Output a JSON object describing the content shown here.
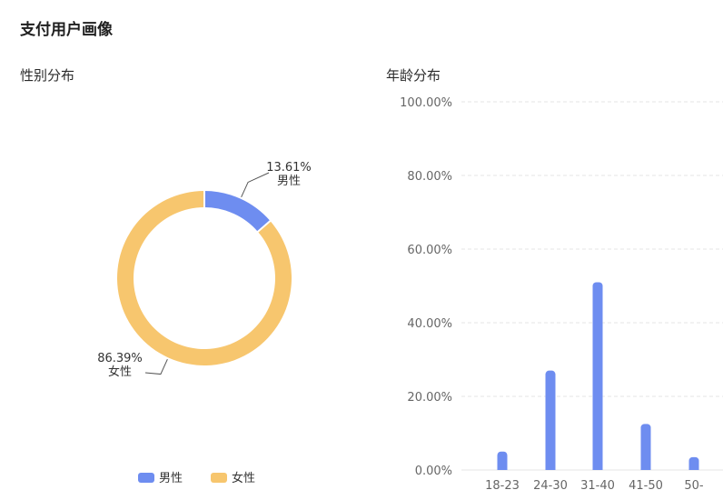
{
  "page": {
    "title": "支付用户画像"
  },
  "chart_data": [
    {
      "type": "pie",
      "variant": "donut",
      "title": "性别分布",
      "slices": [
        {
          "name": "男性",
          "value": 13.61,
          "label": "13.61%",
          "color": "#6e8df0"
        },
        {
          "name": "女性",
          "value": 86.39,
          "label": "86.39%",
          "color": "#f7c66e"
        }
      ],
      "legend_position": "bottom"
    },
    {
      "type": "bar",
      "title": "年龄分布",
      "categories": [
        "18-23",
        "24-30",
        "31-40",
        "41-50",
        "50-"
      ],
      "values": [
        5,
        27,
        51,
        12.5,
        3.5
      ],
      "yticks": [
        "0.00%",
        "20.00%",
        "40.00%",
        "60.00%",
        "80.00%",
        "100.00%"
      ],
      "ylim": [
        0,
        100
      ],
      "color": "#6e8df0",
      "grid": true
    }
  ]
}
